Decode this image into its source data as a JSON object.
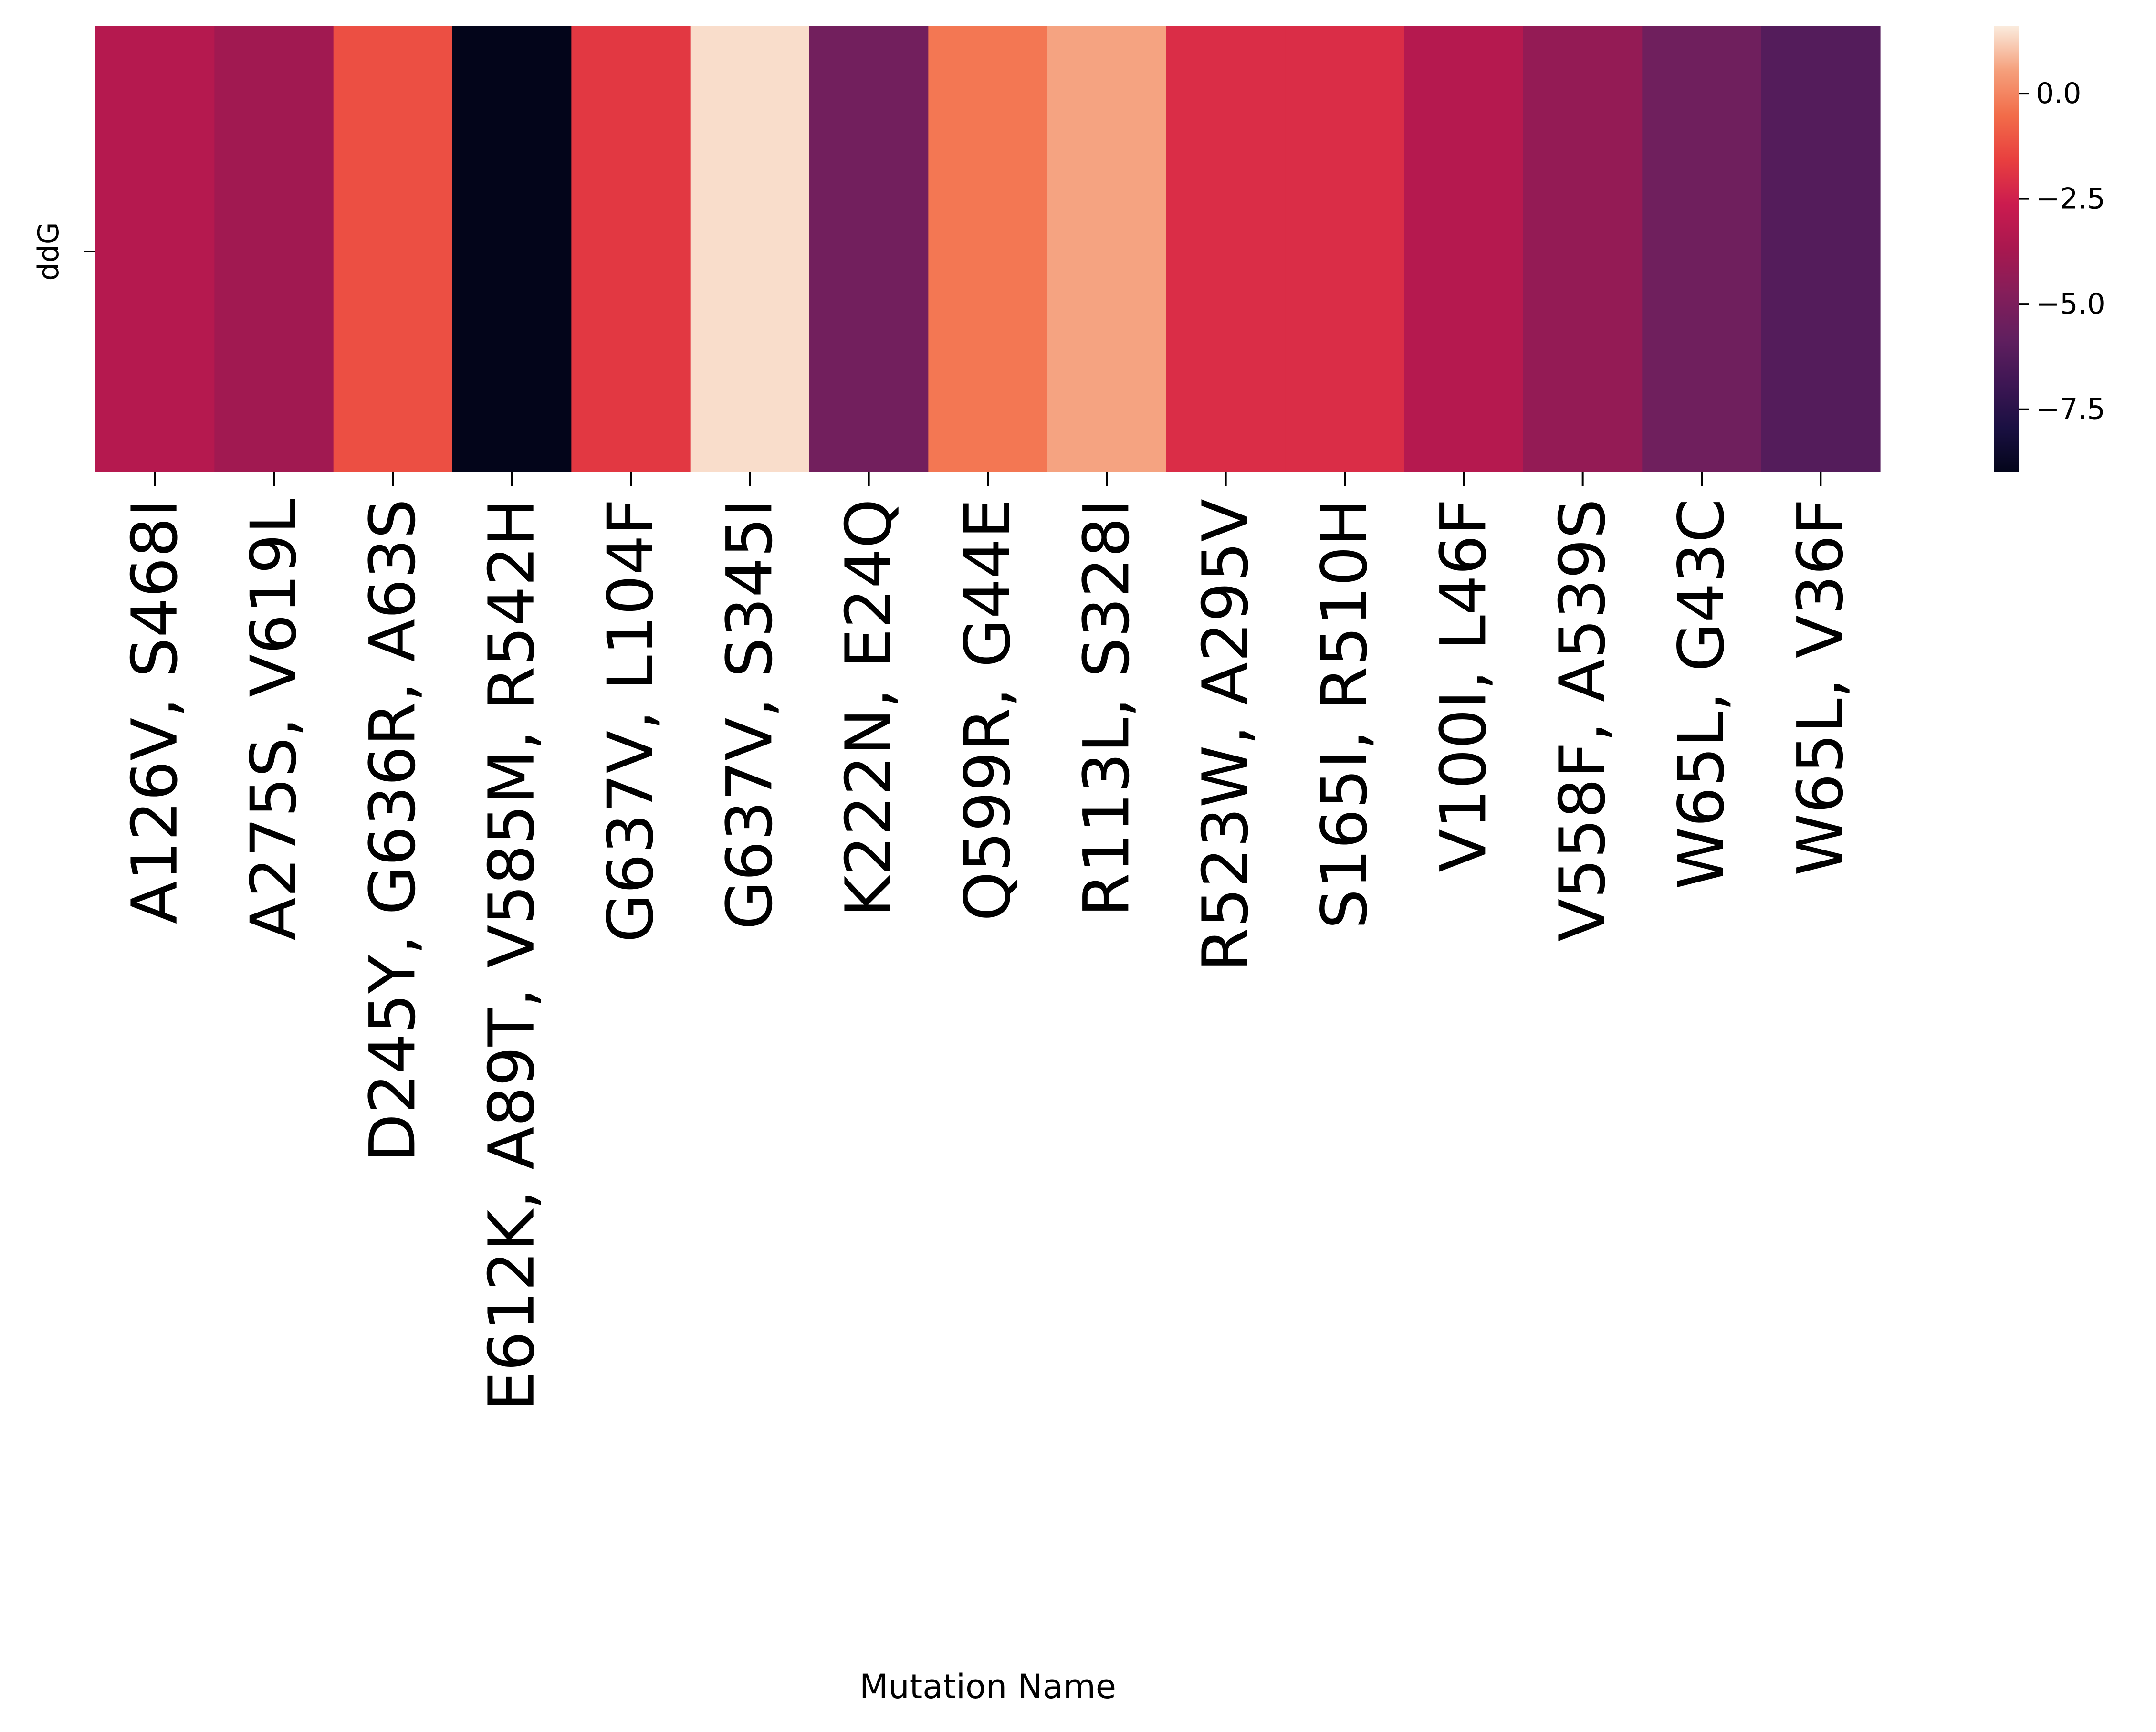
{
  "chart_data": {
    "type": "heatmap",
    "title": "",
    "xlabel": "Mutation Name",
    "ylabel": "",
    "rows": [
      "ddG"
    ],
    "categories": [
      "A126V, S468I",
      "A275S, V619L",
      "D245Y, G636R, A63S",
      "E612K, A89T, V585M, R542H",
      "G637V, L104F",
      "G637V, S345I",
      "K222N, E24Q",
      "Q599R, G44E",
      "R113L, S328I",
      "R523W, A295V",
      "S165I, R510H",
      "V100I, L46F",
      "V558F, A539S",
      "W65L, G43C",
      "W65L, V36F"
    ],
    "values": [
      -3.3,
      -3.9,
      -1.2,
      -9.0,
      -1.8,
      1.4,
      -5.3,
      -0.3,
      0.6,
      -2.1,
      -2.1,
      -3.3,
      -4.3,
      -5.4,
      -6.2
    ],
    "colorbar": {
      "range": [
        -9.0,
        1.6
      ],
      "ticks": [
        0.0,
        -2.5,
        -5.0,
        -7.5
      ],
      "tick_labels": [
        "0.0",
        "−2.5",
        "−5.0",
        "−7.5"
      ],
      "colormap": "rocket"
    },
    "grid": false,
    "legend": "colorbar-right"
  }
}
